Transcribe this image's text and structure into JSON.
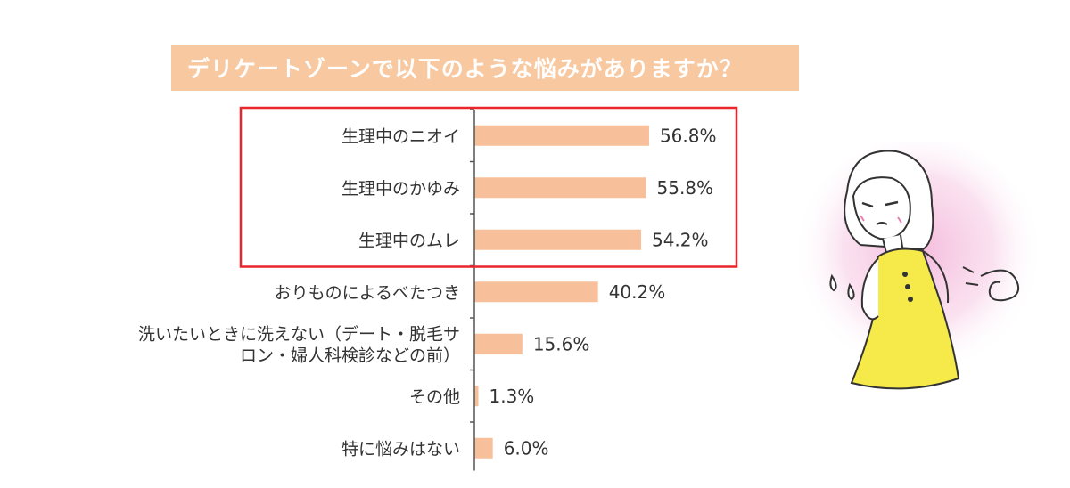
{
  "colors": {
    "bar": "#f8c09a",
    "title_bg": "#f8c9a0",
    "title_text": "#ffffff",
    "highlight": "#e8262b",
    "axis": "#555555",
    "dress": "#f5ea4a",
    "glow": "#f3b3d8"
  },
  "chart_data": {
    "type": "bar",
    "orientation": "horizontal",
    "title": "デリケートゾーンで以下のような悩みがありますか？",
    "unit": "%",
    "xlim": [
      0,
      100
    ],
    "categories": [
      [
        "生理中のニオイ"
      ],
      [
        "生理中のかゆみ"
      ],
      [
        "生理中のムレ"
      ],
      [
        "おりものによるべたつき"
      ],
      [
        "洗いたいときに洗えない（デート・脱毛サ",
        "ロン・婦人科検診などの前）"
      ],
      [
        "その他"
      ],
      [
        "特に悩みはない"
      ]
    ],
    "values": [
      56.8,
      55.8,
      54.2,
      40.2,
      15.6,
      1.3,
      6.0
    ],
    "value_labels": [
      "56.8%",
      "55.8%",
      "54.2%",
      "40.2%",
      "15.6%",
      "1.3%",
      "6.0%"
    ],
    "highlighted_categories": [
      0,
      1,
      2
    ]
  },
  "illustration": {
    "icon": "woman-in-discomfort-illustration"
  }
}
